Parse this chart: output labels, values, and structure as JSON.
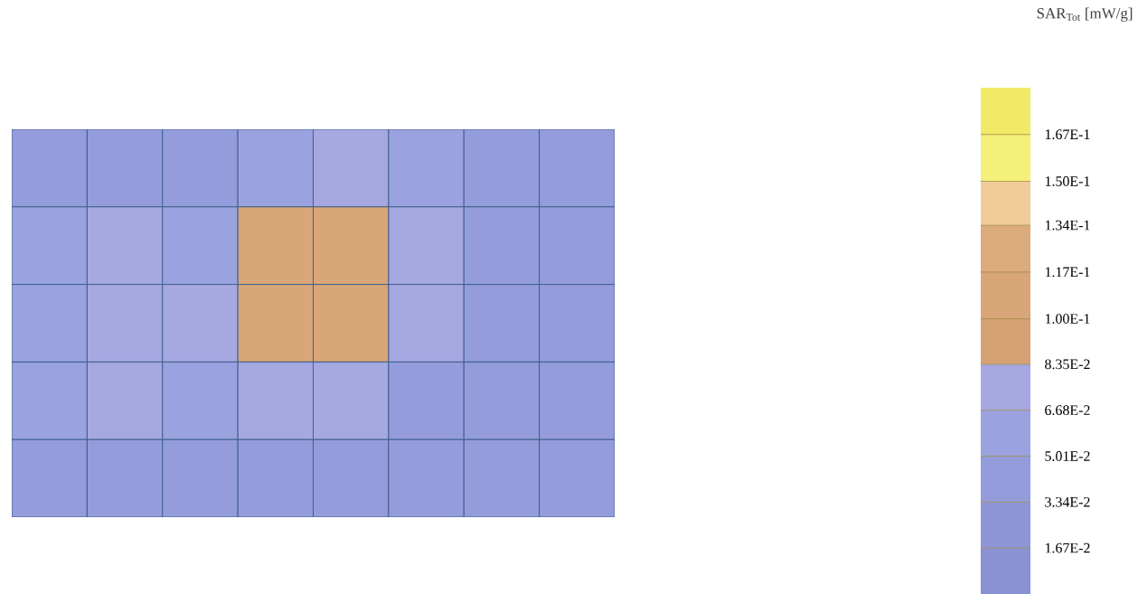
{
  "chart_data": {
    "type": "heatmap",
    "clabel": "SAR$_{Tot}$ [mW/g]",
    "categories": [
      null,
      null,
      null,
      null,
      null,
      null,
      null,
      null
    ],
    "y_categories": [
      null,
      null,
      null,
      null,
      null
    ],
    "cells": [
      [
        0.05,
        0.05,
        0.05,
        0.06,
        0.07,
        0.06,
        0.04,
        0.04
      ],
      [
        0.06,
        0.07,
        0.06,
        0.1,
        0.11,
        0.07,
        0.04,
        0.04
      ],
      [
        0.06,
        0.07,
        0.07,
        0.1,
        0.1,
        0.07,
        0.04,
        0.04
      ],
      [
        0.06,
        0.07,
        0.06,
        0.07,
        0.07,
        0.05,
        0.04,
        0.04
      ],
      [
        0.05,
        0.05,
        0.04,
        0.04,
        0.04,
        0.04,
        0.04,
        0.04
      ]
    ],
    "clim": [
      0,
      0.184
    ],
    "cticks": [
      {
        "value": 0.0167,
        "label": "1.67E-2"
      },
      {
        "value": 0.0334,
        "label": "3.34E-2"
      },
      {
        "value": 0.0501,
        "label": "5.01E-2"
      },
      {
        "value": 0.0668,
        "label": "6.68E-2"
      },
      {
        "value": 0.0835,
        "label": "8.35E-2"
      },
      {
        "value": 0.1,
        "label": "1.00E-1"
      },
      {
        "value": 0.117,
        "label": "1.17E-1"
      },
      {
        "value": 0.134,
        "label": "1.34E-1"
      },
      {
        "value": 0.15,
        "label": "1.50E-1"
      },
      {
        "value": 0.167,
        "label": "1.67E-1"
      }
    ]
  }
}
